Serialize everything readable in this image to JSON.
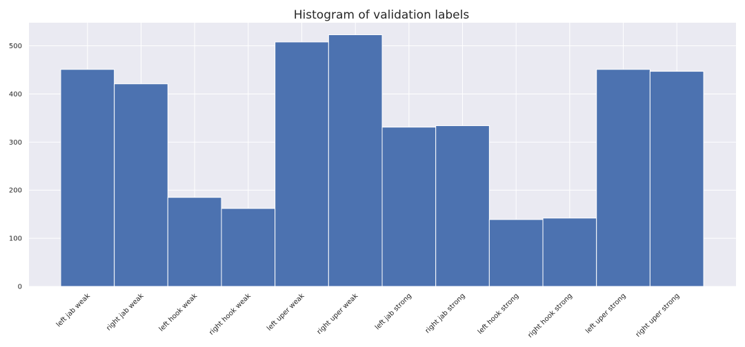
{
  "chart_data": {
    "type": "bar",
    "title": "Histogram of validation labels",
    "xlabel": "",
    "ylabel": "",
    "categories": [
      "left jab weak",
      "right jab weak",
      "left hook weak",
      "right hook weak",
      "left uper weak",
      "right uper weak",
      "left jab strong",
      "right jab strong",
      "left hook strong",
      "right hook strong",
      "left uper strong",
      "right uper strong"
    ],
    "values": [
      451,
      421,
      185,
      162,
      508,
      523,
      331,
      334,
      139,
      142,
      451,
      447
    ],
    "ylim": [
      0,
      548
    ],
    "yticks": [
      0,
      100,
      200,
      300,
      400,
      500
    ],
    "grid": true,
    "colors": {
      "bar": "#4c72b0",
      "background": "#eaeaf2",
      "grid": "#ffffff"
    }
  }
}
